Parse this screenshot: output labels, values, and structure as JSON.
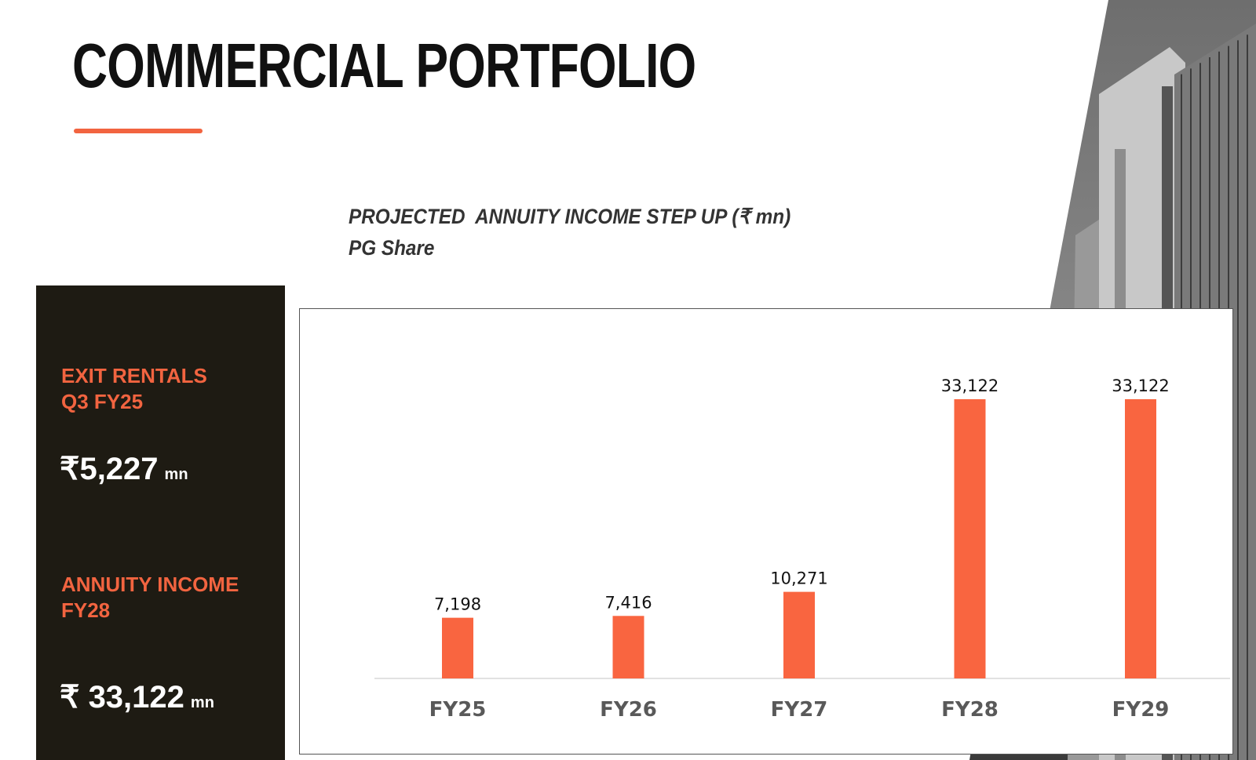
{
  "slide": {
    "title": "COMMERCIAL PORTFOLIO",
    "accent_color": "#f26440"
  },
  "sidebar": {
    "kpis": [
      {
        "label_line1": "EXIT RENTALS",
        "label_line2": "Q3 FY25",
        "value": "₹5,227",
        "unit": "mn"
      },
      {
        "label_line1": "ANNUITY INCOME",
        "label_line2": "FY28",
        "value": "₹ 33,122",
        "unit": "mn"
      }
    ],
    "background_color": "#1e1b13"
  },
  "chart_data": {
    "type": "bar",
    "title": "PROJECTED  ANNUITY INCOME STEP UP (₹ mn)",
    "subtitle": "PG Share",
    "categories": [
      "FY25",
      "FY26",
      "FY27",
      "FY28",
      "FY29"
    ],
    "values": [
      7198,
      7416,
      10271,
      33122,
      33122
    ],
    "data_labels": [
      "7,198",
      "7,416",
      "10,271",
      "33,122",
      "33,122"
    ],
    "ylim": [
      0,
      33122
    ],
    "grid": false,
    "bar_color": "#f96540"
  }
}
